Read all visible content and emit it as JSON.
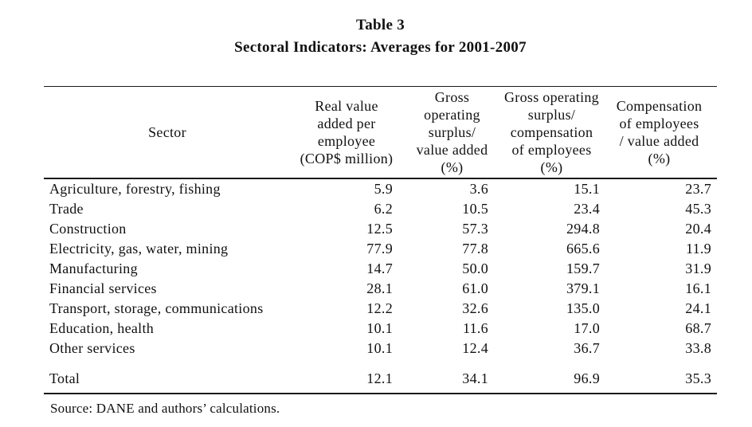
{
  "title": "Table 3",
  "subtitle": "Sectoral Indicators: Averages for 2001-2007",
  "table": {
    "columns": [
      {
        "label": "Sector"
      },
      {
        "label": "Real value\nadded per\nemployee\n(COP$ million)"
      },
      {
        "label": "Gross\noperating\nsurplus/\nvalue added\n(%)"
      },
      {
        "label": "Gross operating\nsurplus/\ncompensation\nof employees\n(%)"
      },
      {
        "label": "Compensation\nof employees\n/ value added\n(%)"
      }
    ],
    "rows": [
      {
        "sector": "Agriculture, forestry, fishing",
        "values": [
          "5.9",
          "3.6",
          "15.1",
          "23.7"
        ]
      },
      {
        "sector": "Trade",
        "values": [
          "6.2",
          "10.5",
          "23.4",
          "45.3"
        ]
      },
      {
        "sector": "Construction",
        "values": [
          "12.5",
          "57.3",
          "294.8",
          "20.4"
        ]
      },
      {
        "sector": "Electricity, gas, water, mining",
        "values": [
          "77.9",
          "77.8",
          "665.6",
          "11.9"
        ]
      },
      {
        "sector": "Manufacturing",
        "values": [
          "14.7",
          "50.0",
          "159.7",
          "31.9"
        ]
      },
      {
        "sector": "Financial services",
        "values": [
          "28.1",
          "61.0",
          "379.1",
          "16.1"
        ]
      },
      {
        "sector": "Transport, storage, communications",
        "values": [
          "12.2",
          "32.6",
          "135.0",
          "24.1"
        ]
      },
      {
        "sector": "Education, health",
        "values": [
          "10.1",
          "11.6",
          "17.0",
          "68.7"
        ]
      },
      {
        "sector": "Other services",
        "values": [
          "10.1",
          "12.4",
          "36.7",
          "33.8"
        ]
      }
    ],
    "total": {
      "sector": "Total",
      "values": [
        "12.1",
        "34.1",
        "96.9",
        "35.3"
      ]
    }
  },
  "source": "Source: DANE and authors’ calculations."
}
